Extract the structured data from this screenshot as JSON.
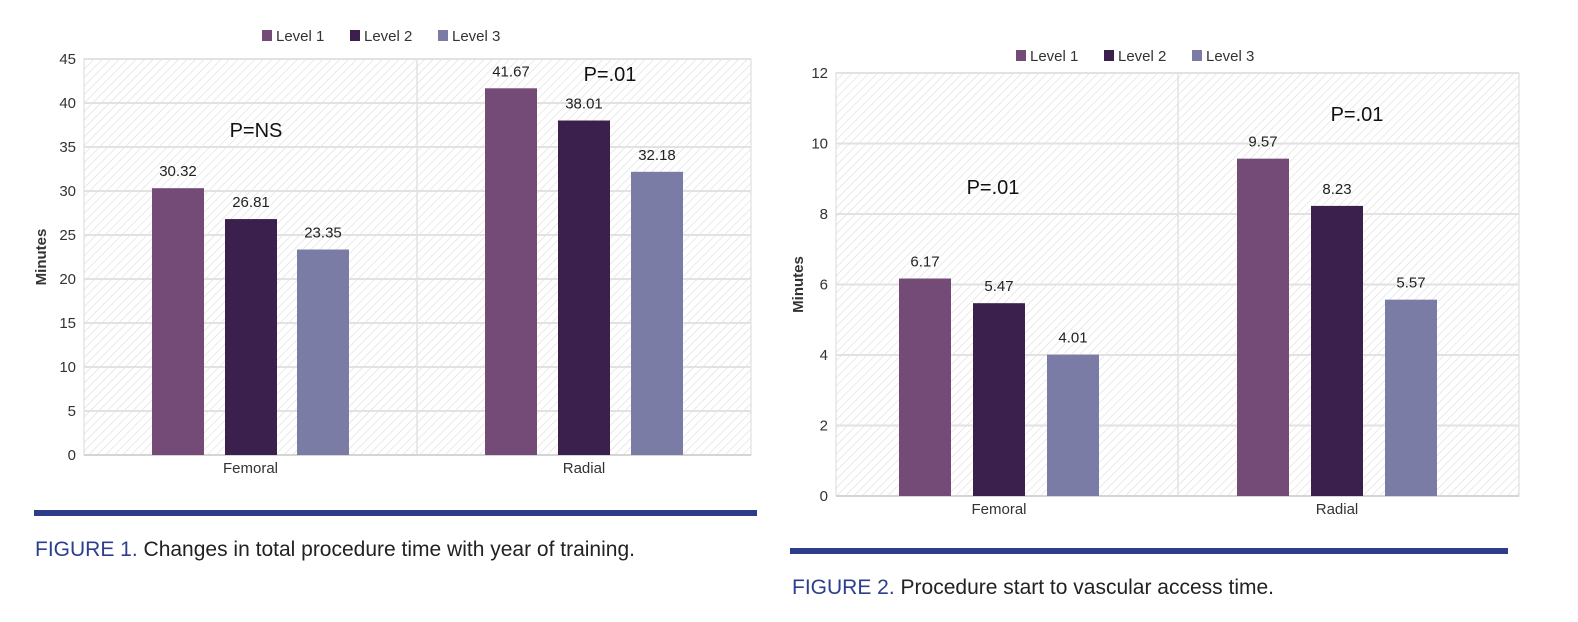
{
  "colors": {
    "level1": "#744a76",
    "level2": "#3b1f4d",
    "level3": "#7a7ca6",
    "accent": "#2d3d8a"
  },
  "figures": [
    {
      "label": "FIGURE 1.",
      "caption": "Changes in total procedure time with year of training."
    },
    {
      "label": "FIGURE 2.",
      "caption": "Procedure start to vascular access time."
    }
  ],
  "chart_data": [
    {
      "type": "bar",
      "categories": [
        "Femoral",
        "Radial"
      ],
      "series": [
        {
          "name": "Level 1",
          "values": [
            30.32,
            41.67
          ]
        },
        {
          "name": "Level 2",
          "values": [
            26.81,
            38.01
          ]
        },
        {
          "name": "Level 3",
          "values": [
            23.35,
            32.18
          ]
        }
      ],
      "data_labels": [
        [
          "30.32",
          "26.81",
          "23.35"
        ],
        [
          "41.67",
          "38.01",
          "32.18"
        ]
      ],
      "ylabel": "Minutes",
      "ylim": [
        0,
        45
      ],
      "yticks": [
        "0",
        "5",
        "10",
        "15",
        "20",
        "25",
        "30",
        "35",
        "40",
        "45"
      ],
      "annotations": [
        "P=NS",
        "P=.01"
      ],
      "legend": "top-center",
      "grid": true
    },
    {
      "type": "bar",
      "categories": [
        "Femoral",
        "Radial"
      ],
      "series": [
        {
          "name": "Level 1",
          "values": [
            6.17,
            9.57
          ]
        },
        {
          "name": "Level 2",
          "values": [
            5.47,
            8.23
          ]
        },
        {
          "name": "Level 3",
          "values": [
            4.01,
            5.57
          ]
        }
      ],
      "data_labels": [
        [
          "6.17",
          "5.47",
          "4.01"
        ],
        [
          "9.57",
          "8.23",
          "5.57"
        ]
      ],
      "ylabel": "Minutes",
      "ylim": [
        0,
        12
      ],
      "yticks": [
        "0",
        "2",
        "4",
        "6",
        "8",
        "10",
        "12"
      ],
      "annotations": [
        "P=.01",
        "P=.01"
      ],
      "legend": "top-center",
      "grid": true
    }
  ]
}
